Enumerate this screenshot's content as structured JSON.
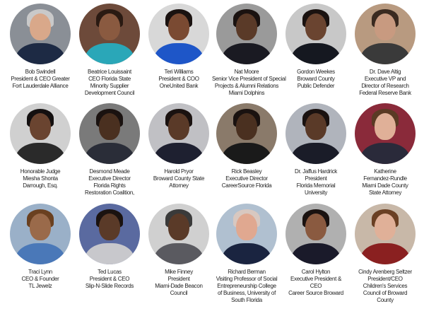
{
  "people": [
    {
      "lines": [
        "Bob Swindell",
        "President & CEO Greater",
        "Fort Lauderdale Alliance"
      ],
      "bg": "#8a8f96",
      "skin": "#d9a88a",
      "hair": "#c9c9c9",
      "suit": "#1d2a44"
    },
    {
      "lines": [
        "Beatrice Louissaint",
        "CEO Florida State",
        "Minority Supplier",
        "Development Council"
      ],
      "bg": "#6d4a3a",
      "skin": "#8a5a40",
      "hair": "#2a1a12",
      "suit": "#2aa7b8"
    },
    {
      "lines": [
        "Teri Williams",
        "President & COO",
        "OneUnited Bank"
      ],
      "bg": "#d8d8d8",
      "skin": "#7a4a32",
      "hair": "#1a1210",
      "suit": "#1e56c8"
    },
    {
      "lines": [
        "Nat Moore",
        "Senior Vice President of Special",
        "Projects & Alumni Relations",
        "Miami Dolphins"
      ],
      "bg": "#9a9a9a",
      "skin": "#5a3a28",
      "hair": "#1a1210",
      "suit": "#1a1a22"
    },
    {
      "lines": [
        "Gordon Weekes",
        "Broward County",
        "Public Defender"
      ],
      "bg": "#c8c8c8",
      "skin": "#6a4430",
      "hair": "#1a1210",
      "suit": "#151820"
    },
    {
      "lines": [
        "Dr. Dave Altig",
        "Executive VP and",
        "Director of Research",
        "Federal Reserve Bank"
      ],
      "bg": "#b89a80",
      "skin": "#c89a80",
      "hair": "#3a2a20",
      "suit": "#3a3a3a"
    },
    {
      "lines": [
        "Honorable Judge",
        "Miesha Shonta",
        "Darrough, Esq."
      ],
      "bg": "#d0d0d0",
      "skin": "#6a4430",
      "hair": "#141010",
      "suit": "#2a2a2a"
    },
    {
      "lines": [
        "Desmond Meade",
        "Executive Director",
        "Florida Rights",
        "Restoration Coalition,"
      ],
      "bg": "#7a7a7a",
      "skin": "#4a3020",
      "hair": "#1a1210",
      "suit": "#2a2d38"
    },
    {
      "lines": [
        "Harold Pryor",
        "Broward County State",
        "Attorney"
      ],
      "bg": "#c0c0c4",
      "skin": "#5a3a28",
      "hair": "#1a1210",
      "suit": "#1e2030"
    },
    {
      "lines": [
        "Rick Beasley",
        "Executive Director",
        "CareerSource Florida"
      ],
      "bg": "#8a7a6a",
      "skin": "#4a3020",
      "hair": "#1a1210",
      "suit": "#1a1a1a"
    },
    {
      "lines": [
        "Dr. Jaffus Hardrick",
        "President",
        "Florida Memorial",
        "University"
      ],
      "bg": "#b0b4bc",
      "skin": "#5a3a28",
      "hair": "#1a1210",
      "suit": "#1a1c28"
    },
    {
      "lines": [
        "Katherine",
        "Fernandez-Rundle",
        "Miami Dade County",
        "State Attorney"
      ],
      "bg": "#8a2a3a",
      "skin": "#e0b098",
      "hair": "#5a3a24",
      "suit": "#2a2a3a"
    },
    {
      "lines": [
        "Traci Lynn",
        "CEO & Founder",
        "TL Jewelz"
      ],
      "bg": "#9ab0c8",
      "skin": "#9a6a4a",
      "hair": "#6a4020",
      "suit": "#4a78b8"
    },
    {
      "lines": [
        "Ted Lucas",
        "President & CEO",
        "Slip-N-Slide Records"
      ],
      "bg": "#5a6aa0",
      "skin": "#5a3a28",
      "hair": "#1a1210",
      "suit": "#c8c8cc"
    },
    {
      "lines": [
        "Mike Finney",
        "President",
        "Miami-Dade Beacon",
        "Council"
      ],
      "bg": "#d0d0d0",
      "skin": "#5a3a28",
      "hair": "#3a3a3a",
      "suit": "#5a5a60"
    },
    {
      "lines": [
        "Richard Berman",
        "Visiting Professor of Social",
        "Entrepreneurship College",
        "of Business, University of",
        "South Florida"
      ],
      "bg": "#b0c0d0",
      "skin": "#e0a890",
      "hair": "#d8c8c0",
      "suit": "#1a2440"
    },
    {
      "lines": [
        "Carol Hylton",
        "Executive President &",
        "CEO",
        "Career Source Broward"
      ],
      "bg": "#b0b0b0",
      "skin": "#8a5a40",
      "hair": "#1a1210",
      "suit": "#1a1a2a"
    },
    {
      "lines": [
        "Cindy Arenberg Seltzer",
        "President/CEO",
        "Children's Services",
        "Council of Broward",
        "County"
      ],
      "bg": "#c8b8a8",
      "skin": "#e0b098",
      "hair": "#6a4024",
      "suit": "#8a2020"
    }
  ]
}
